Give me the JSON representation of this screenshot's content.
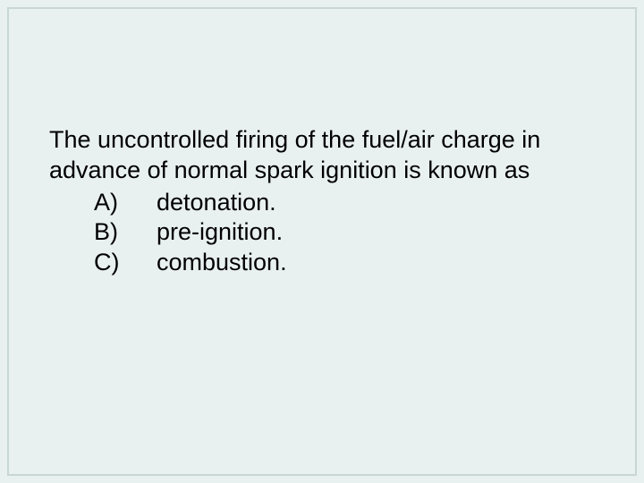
{
  "background_color": "#e9f0f0",
  "frame_border_color": "#c8d6d6",
  "text_color": "#000000",
  "font_size": 27,
  "question": {
    "text": "The uncontrolled firing of the fuel/air charge in advance of normal spark ignition is known as",
    "options": [
      {
        "label": "A)",
        "text": "detonation."
      },
      {
        "label": "B)",
        "text": "pre-ignition."
      },
      {
        "label": "C)",
        "text": "combustion."
      }
    ]
  }
}
